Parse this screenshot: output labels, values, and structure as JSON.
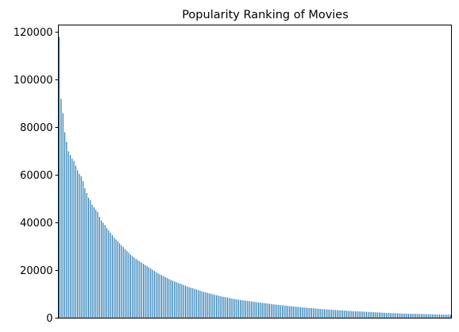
{
  "chart_data": {
    "type": "bar",
    "title": "Popularity Ranking of Movies",
    "xlabel": "",
    "ylabel": "",
    "ylim": [
      0,
      123000
    ],
    "yticks": [
      0,
      20000,
      40000,
      60000,
      80000,
      100000,
      120000
    ],
    "ytick_labels": [
      "0",
      "20000",
      "40000",
      "60000",
      "80000",
      "100000",
      "120000"
    ],
    "x_tick_labels_shown": false,
    "grid": false,
    "legend": "none",
    "bar_color": "#1f77b4",
    "values": [
      118000,
      92000,
      86000,
      78000,
      74000,
      70000,
      68500,
      67000,
      66000,
      64000,
      62000,
      60500,
      59500,
      57500,
      54500,
      52500,
      50500,
      49500,
      47500,
      46500,
      45500,
      44500,
      42500,
      41000,
      40000,
      39000,
      37800,
      36800,
      35800,
      34800,
      33800,
      33000,
      32200,
      31400,
      30600,
      29800,
      29000,
      28200,
      27400,
      26600,
      26000,
      25400,
      24800,
      24300,
      23800,
      23300,
      22800,
      22300,
      21800,
      21300,
      20800,
      20300,
      19800,
      19300,
      18800,
      18400,
      18000,
      17600,
      17200,
      16800,
      16400,
      16000,
      15700,
      15400,
      15100,
      14800,
      14500,
      14200,
      13900,
      13600,
      13300,
      13000,
      12750,
      12500,
      12250,
      12000,
      11750,
      11500,
      11250,
      11000,
      10800,
      10600,
      10400,
      10200,
      10000,
      9800,
      9600,
      9400,
      9200,
      9050,
      8900,
      8750,
      8600,
      8450,
      8300,
      8150,
      8000,
      7850,
      7700,
      7600,
      7500,
      7400,
      7300,
      7200,
      7100,
      7000,
      6900,
      6800,
      6700,
      6600,
      6500,
      6400,
      6300,
      6200,
      6100,
      6000,
      5900,
      5800,
      5700,
      5600,
      5520,
      5440,
      5360,
      5280,
      5200,
      5120,
      5040,
      4960,
      4880,
      4800,
      4720,
      4650,
      4580,
      4510,
      4440,
      4370,
      4300,
      4230,
      4160,
      4090,
      4020,
      3950,
      3880,
      3810,
      3750,
      3700,
      3650,
      3600,
      3550,
      3500,
      3450,
      3400,
      3350,
      3300,
      3250,
      3200,
      3150,
      3100,
      3050,
      3000,
      2960,
      2920,
      2880,
      2840,
      2800,
      2760,
      2720,
      2680,
      2640,
      2600,
      2560,
      2520,
      2480,
      2440,
      2400,
      2360,
      2320,
      2280,
      2240,
      2200,
      2170,
      2140,
      2110,
      2080,
      2050,
      2020,
      1990,
      1960,
      1930,
      1900,
      1880,
      1860,
      1840,
      1820,
      1800,
      1780,
      1760,
      1740,
      1720,
      1700,
      1680,
      1660,
      1640,
      1620,
      1600,
      1580,
      1560,
      1540,
      1520,
      1500,
      1480,
      1460,
      1440,
      1420,
      1400
    ]
  }
}
